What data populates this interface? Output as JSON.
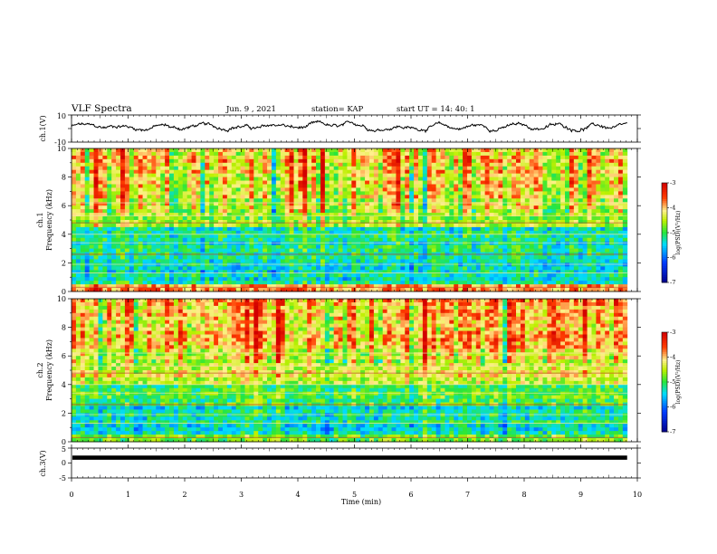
{
  "header": {
    "title": "VLF Spectra",
    "date": "Jun. 9 , 2021",
    "station": "station= KAP",
    "start": "start UT =  14: 40: 1"
  },
  "chart_data": [
    {
      "type": "line",
      "panel": "ch1-waveform",
      "ylabel": "ch.1(V)",
      "ylim": [
        -10,
        10
      ],
      "yticks": [
        "10",
        "-10"
      ],
      "xlim": [
        0,
        10
      ],
      "data_end_min": 9.82,
      "series": [
        {
          "approx_mean": 0,
          "approx_range": [
            -3,
            6
          ],
          "color": "#000000"
        }
      ]
    },
    {
      "type": "heatmap",
      "panel": "ch1-spectrogram",
      "ylabel": "ch.1\nFrequency (kHz)",
      "ylim": [
        0,
        10
      ],
      "yticks": [
        "0",
        "2",
        "4",
        "6",
        "8",
        "10"
      ],
      "xlim": [
        0,
        10
      ],
      "data_end_min": 9.82,
      "colorbar": {
        "label": "log(PSD)(V²/Hz)",
        "ticks": [
          "-3",
          "-4",
          "-5",
          "-6",
          "-7"
        ],
        "range": [
          -7,
          -3
        ]
      },
      "bands": [
        {
          "f_from": 0.0,
          "f_to": 0.5,
          "level": -3.8
        },
        {
          "f_from": 0.5,
          "f_to": 2.5,
          "level": -5.3
        },
        {
          "f_from": 2.5,
          "f_to": 4.5,
          "level": -5.2
        },
        {
          "f_from": 4.5,
          "f_to": 5.6,
          "level": -4.6
        },
        {
          "f_from": 5.6,
          "f_to": 7.5,
          "level": -4.4
        },
        {
          "f_from": 7.5,
          "f_to": 10.0,
          "level": -4.2
        }
      ]
    },
    {
      "type": "heatmap",
      "panel": "ch2-spectrogram",
      "ylabel": "ch.2\nFrequency (kHz)",
      "ylim": [
        0,
        10
      ],
      "yticks": [
        "0",
        "2",
        "4",
        "6",
        "8",
        "10"
      ],
      "xlim": [
        0,
        10
      ],
      "data_end_min": 9.82,
      "colorbar": {
        "label": "log(PSD)(V²/Hz)",
        "ticks": [
          "-3",
          "-4",
          "-5",
          "-6",
          "-7"
        ],
        "range": [
          -7,
          -3
        ]
      },
      "bands": [
        {
          "f_from": 0.0,
          "f_to": 0.5,
          "level": -4.9
        },
        {
          "f_from": 0.5,
          "f_to": 2.5,
          "level": -5.3
        },
        {
          "f_from": 2.5,
          "f_to": 4.0,
          "level": -5.0
        },
        {
          "f_from": 4.0,
          "f_to": 6.5,
          "level": -4.3
        },
        {
          "f_from": 6.5,
          "f_to": 10.0,
          "level": -4.0
        }
      ]
    },
    {
      "type": "line",
      "panel": "ch3-waveform",
      "ylabel": "ch.3(V)",
      "ylim": [
        -5,
        5
      ],
      "yticks": [
        "5",
        "0",
        "-5"
      ],
      "xlim": [
        0,
        10
      ],
      "xlabel": "Time (min)",
      "xticks": [
        "0",
        "1",
        "2",
        "3",
        "4",
        "5",
        "6",
        "7",
        "8",
        "9",
        "10"
      ],
      "data_end_min": 9.82,
      "series": [
        {
          "approx_mean": 1.8,
          "approx_range": [
            1.1,
            2.5
          ],
          "color": "#000000"
        }
      ]
    }
  ]
}
